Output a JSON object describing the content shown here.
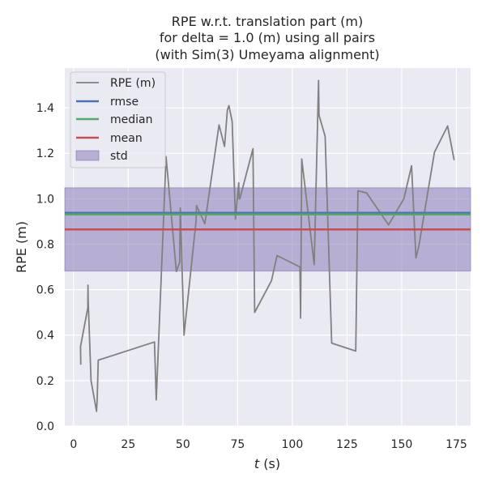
{
  "chart_data": {
    "type": "line",
    "title_lines": [
      "RPE w.r.t. translation part (m)",
      "for delta = 1.0 (m) using all pairs",
      "(with Sim(3) Umeyama alignment)"
    ],
    "xlabel_var": "t",
    "xlabel_unit": " (s)",
    "ylabel": "RPE (m)",
    "xlim": [
      -4,
      181.5
    ],
    "ylim": [
      0.0,
      1.575
    ],
    "xticks": [
      0,
      25,
      50,
      75,
      100,
      125,
      150,
      175
    ],
    "yticks": [
      0.0,
      0.2,
      0.4,
      0.6,
      0.8,
      1.0,
      1.2,
      1.4
    ],
    "xtick_labels": [
      "0",
      "25",
      "50",
      "75",
      "100",
      "125",
      "150",
      "175"
    ],
    "ytick_labels": [
      "0.0",
      "0.2",
      "0.4",
      "0.6",
      "0.8",
      "1.0",
      "1.2",
      "1.4"
    ],
    "grid": true,
    "legend_position": "top-left",
    "series": [
      {
        "name": "RPE (m)",
        "color": "#808080",
        "x": [
          3.3,
          3.2,
          6.5,
          6.6,
          6.7,
          8.0,
          10.5,
          10.8,
          11.3,
          37.0,
          37.8,
          42.0,
          42.3,
          47.0,
          48.5,
          48.8,
          50.5,
          56.0,
          56.2,
          60.0,
          66.5,
          69.0,
          70.3,
          71.0,
          72.5,
          74.0,
          75.5,
          75.7,
          76.0,
          82.0,
          82.8,
          90.5,
          93.0,
          103.5,
          103.8,
          104.3,
          110.0,
          112.0,
          112.2,
          112.4,
          115.0,
          118.0,
          129.0,
          130.0,
          134.0,
          144.0,
          151.0,
          154.5,
          156.5,
          157.8,
          165.0,
          171.0,
          174.0
        ],
        "y": [
          0.27,
          0.35,
          0.52,
          0.62,
          0.55,
          0.2,
          0.065,
          0.12,
          0.29,
          0.37,
          0.115,
          1.11,
          1.185,
          0.68,
          0.72,
          0.96,
          0.4,
          0.9,
          0.97,
          0.89,
          1.325,
          1.23,
          1.39,
          1.41,
          1.34,
          0.91,
          1.07,
          1.0,
          1.0,
          1.22,
          0.5,
          0.64,
          0.75,
          0.7,
          0.475,
          1.175,
          0.71,
          1.52,
          1.37,
          1.36,
          1.275,
          0.365,
          0.33,
          1.035,
          1.025,
          0.885,
          1.0,
          1.145,
          0.74,
          0.79,
          1.205,
          1.32,
          1.17
        ]
      }
    ],
    "stats": {
      "rmse": 0.938,
      "median": 0.931,
      "mean": 0.865,
      "std_band": [
        0.682,
        1.048
      ]
    },
    "legend": {
      "rpe": "RPE (m)",
      "rmse": "rmse",
      "median": "median",
      "mean": "mean",
      "std": "std"
    },
    "colors": {
      "background": "#eaeaf2",
      "grid": "#ffffff",
      "rpe": "#808080",
      "rmse": "#4c72b0",
      "median": "#55a868",
      "mean": "#c44e52",
      "std": "#8172b3"
    }
  }
}
